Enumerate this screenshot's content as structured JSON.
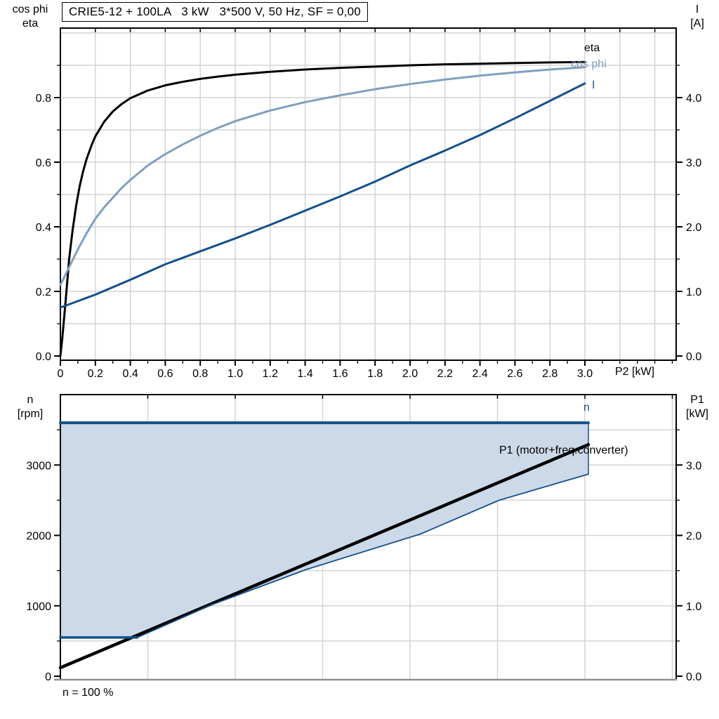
{
  "title": "CRIE5-12 + 100LA   3 kW   3*500 V, 50 Hz, SF = 0,00",
  "footer": {
    "speed_note": "n = 100 %"
  },
  "colors": {
    "black": "#000000",
    "dark_blue": "#15508a",
    "light_blue": "#7f9fbf",
    "area_fill": "#ccd9e8",
    "grid": "#d4d4d4",
    "axis_bottom_gray": "#909090",
    "frame": "#000000",
    "background": "#ffffff"
  },
  "chart_data": [
    {
      "type": "line",
      "title": "CRIE5-12 + 100LA   3 kW   3*500 V, 50 Hz, SF = 0,00",
      "xlabel": "P2 [kW]",
      "ylabel_left_line1": "cos phi",
      "ylabel_left_line2": "eta",
      "ylabel_right_line1": "I",
      "ylabel_right_line2": "[A]",
      "xlim": [
        0,
        3.52
      ],
      "ylim_left": [
        0,
        1.02
      ],
      "ylim_right": [
        0,
        5.08
      ],
      "x_ticks": {
        "labels": [
          "0",
          "0.2",
          "0.4",
          "0.6",
          "0.8",
          "1.0",
          "1.2",
          "1.4",
          "1.6",
          "1.8",
          "2.0",
          "2.2",
          "2.4",
          "2.6",
          "2.8",
          "3.0"
        ],
        "step": 0.2,
        "minor_step": 0.1,
        "minor_max": 3.5
      },
      "y_left_ticks": {
        "labels": [
          "0.0",
          "0.2",
          "0.4",
          "0.6",
          "0.8"
        ],
        "step": 0.2,
        "minor_step": 0.1,
        "minor_max": 0.9
      },
      "y_right_ticks": {
        "labels": [
          "0.0",
          "1.0",
          "2.0",
          "3.0",
          "4.0"
        ],
        "step": 1.0,
        "minor_step": 0.5,
        "minor_max": 4.5
      },
      "grid": {
        "v_step": 0.2,
        "v_max": 3.4,
        "h_step": 0.1,
        "h_max": 1.0
      },
      "series": [
        {
          "name": "eta",
          "label": "eta",
          "axis": "left",
          "color_key": "black",
          "width": 3,
          "points": [
            [
              0,
              0
            ],
            [
              0.01,
              0.05
            ],
            [
              0.02,
              0.11
            ],
            [
              0.03,
              0.17
            ],
            [
              0.05,
              0.3
            ],
            [
              0.07,
              0.39
            ],
            [
              0.09,
              0.465
            ],
            [
              0.11,
              0.525
            ],
            [
              0.13,
              0.572
            ],
            [
              0.15,
              0.61
            ],
            [
              0.18,
              0.655
            ],
            [
              0.2,
              0.68
            ],
            [
              0.25,
              0.725
            ],
            [
              0.3,
              0.757
            ],
            [
              0.35,
              0.78
            ],
            [
              0.4,
              0.798
            ],
            [
              0.5,
              0.822
            ],
            [
              0.6,
              0.838
            ],
            [
              0.7,
              0.849
            ],
            [
              0.8,
              0.858
            ],
            [
              0.9,
              0.865
            ],
            [
              1.0,
              0.871
            ],
            [
              1.2,
              0.88
            ],
            [
              1.4,
              0.887
            ],
            [
              1.6,
              0.892
            ],
            [
              1.8,
              0.896
            ],
            [
              2.0,
              0.9
            ],
            [
              2.2,
              0.903
            ],
            [
              2.4,
              0.905
            ],
            [
              2.6,
              0.907
            ],
            [
              2.8,
              0.909
            ],
            [
              3.0,
              0.91
            ]
          ]
        },
        {
          "name": "cos-phi",
          "label": "cos phi",
          "axis": "left",
          "color_key": "light_blue",
          "width": 3,
          "points": [
            [
              0,
              0.22
            ],
            [
              0.05,
              0.275
            ],
            [
              0.1,
              0.33
            ],
            [
              0.15,
              0.38
            ],
            [
              0.2,
              0.425
            ],
            [
              0.25,
              0.46
            ],
            [
              0.3,
              0.49
            ],
            [
              0.35,
              0.52
            ],
            [
              0.4,
              0.545
            ],
            [
              0.5,
              0.59
            ],
            [
              0.6,
              0.625
            ],
            [
              0.7,
              0.655
            ],
            [
              0.8,
              0.682
            ],
            [
              0.9,
              0.706
            ],
            [
              1.0,
              0.727
            ],
            [
              1.2,
              0.76
            ],
            [
              1.4,
              0.786
            ],
            [
              1.6,
              0.807
            ],
            [
              1.8,
              0.826
            ],
            [
              2.0,
              0.842
            ],
            [
              2.2,
              0.856
            ],
            [
              2.4,
              0.868
            ],
            [
              2.6,
              0.878
            ],
            [
              2.8,
              0.887
            ],
            [
              3.0,
              0.894
            ]
          ]
        },
        {
          "name": "current-I",
          "label": "I",
          "axis": "right",
          "color_key": "dark_blue",
          "width": 3,
          "points": [
            [
              0,
              0.75
            ],
            [
              0.2,
              0.95
            ],
            [
              0.4,
              1.18
            ],
            [
              0.6,
              1.42
            ],
            [
              0.8,
              1.62
            ],
            [
              1.0,
              1.82
            ],
            [
              1.2,
              2.03
            ],
            [
              1.4,
              2.25
            ],
            [
              1.6,
              2.47
            ],
            [
              1.8,
              2.7
            ],
            [
              2.0,
              2.95
            ],
            [
              2.2,
              3.18
            ],
            [
              2.4,
              3.42
            ],
            [
              2.6,
              3.68
            ],
            [
              2.8,
              3.95
            ],
            [
              3.0,
              4.22
            ]
          ]
        }
      ]
    },
    {
      "type": "line",
      "xlabel": "",
      "ylabel_left_line1": "n",
      "ylabel_left_line2": "[rpm]",
      "ylabel_right_line1": "P1",
      "ylabel_right_line2": "[kW]",
      "xlim": [
        0,
        3.52
      ],
      "ylim_left": [
        0,
        4050
      ],
      "ylim_right": [
        0,
        4.05
      ],
      "y_left_ticks": {
        "labels": [
          "0",
          "1000",
          "2000",
          "3000"
        ],
        "step": 1000,
        "minor_step": 500,
        "minor_max": 3500
      },
      "y_right_ticks": {
        "labels": [
          "0.0",
          "1.0",
          "2.0",
          "3.0"
        ],
        "step": 1.0,
        "minor_step": 0.5,
        "minor_max": 3.5
      },
      "grid": {
        "v_step": 0.5,
        "v_max": 3.5,
        "h_step": 500,
        "h_max": 3500
      },
      "area": {
        "name": "operating-range",
        "color_key": "area_fill",
        "edge_color_key": "dark_blue",
        "upper_axis": "left",
        "upper_points": [
          [
            0,
            3600
          ],
          [
            3.02,
            3600
          ]
        ],
        "lower_axis": "right",
        "lower_points": [
          [
            0,
            0.55
          ],
          [
            0.44,
            0.55
          ],
          [
            0.86,
            1.01
          ],
          [
            1.4,
            1.51
          ],
          [
            2.06,
            2.02
          ],
          [
            2.51,
            2.5
          ],
          [
            3.02,
            2.87
          ]
        ]
      },
      "series": [
        {
          "name": "speed-n",
          "label": "n",
          "axis": "left",
          "color_key": "dark_blue",
          "width": 4,
          "points": [
            [
              0,
              3600
            ],
            [
              3.02,
              3600
            ]
          ]
        },
        {
          "name": "p1-total",
          "label": "P1 (motor+freq.converter)",
          "axis": "right",
          "color_key": "black",
          "width": 4.5,
          "points": [
            [
              0,
              0.12
            ],
            [
              3.02,
              3.29
            ]
          ]
        },
        {
          "name": "n-min",
          "label": "",
          "axis": "right",
          "color_key": "dark_blue",
          "width": 3.5,
          "points": [
            [
              0,
              0.55
            ],
            [
              0.44,
              0.55
            ]
          ]
        },
        {
          "name": "p1-lower-bound",
          "label": "",
          "axis": "right",
          "color_key": "dark_blue",
          "width": 1.8,
          "points": [
            [
              0.44,
              0.55
            ],
            [
              0.86,
              1.01
            ],
            [
              1.4,
              1.51
            ],
            [
              2.06,
              2.02
            ],
            [
              2.51,
              2.5
            ],
            [
              3.02,
              2.87
            ]
          ]
        }
      ],
      "bottom_axis_gray": true
    }
  ]
}
